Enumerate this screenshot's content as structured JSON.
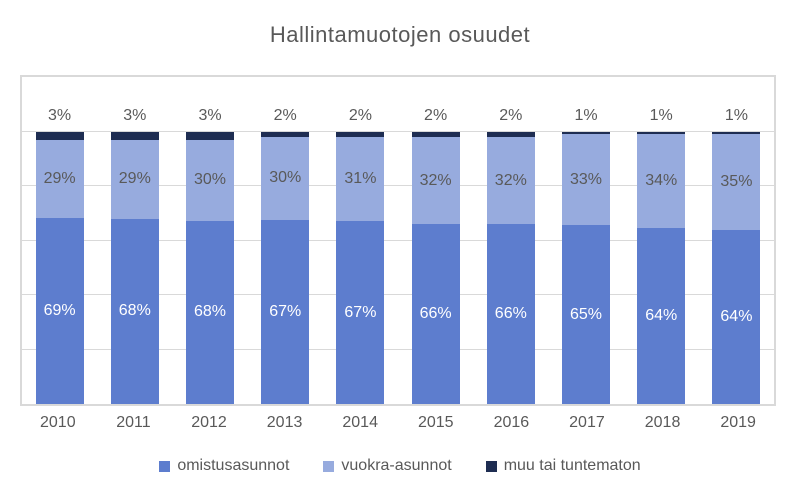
{
  "title": "Hallintamuotojen osuudet",
  "colors": {
    "text_gray": "#595959",
    "grid": "#D9D9D9",
    "frame": "#D9D9D9",
    "label_on_dark": "#FFFFFF"
  },
  "chart_data": {
    "type": "bar",
    "stacked": true,
    "title": "Hallintamuotojen osuudet",
    "categories": [
      "2010",
      "2011",
      "2012",
      "2013",
      "2014",
      "2015",
      "2016",
      "2017",
      "2018",
      "2019"
    ],
    "series": [
      {
        "name": "omistusasunnot",
        "color": "#5D7DCE",
        "label_color": "#FFFFFF",
        "label_position": "inside",
        "values": [
          69,
          68,
          68,
          67,
          67,
          66,
          66,
          65,
          64,
          64
        ]
      },
      {
        "name": "vuokra-asunnot",
        "color": "#97ABDE",
        "label_color": "#595959",
        "label_position": "inside",
        "values": [
          29,
          29,
          30,
          30,
          31,
          32,
          32,
          33,
          34,
          35
        ]
      },
      {
        "name": "muu tai tuntematon",
        "color": "#1E2D52",
        "label_color": "#595959",
        "label_position": "above",
        "values": [
          3,
          3,
          3,
          2,
          2,
          2,
          2,
          1,
          1,
          1
        ]
      }
    ],
    "value_suffix": "%",
    "ylim": [
      0,
      120
    ],
    "gridlines": [
      20,
      40,
      60,
      80,
      100
    ],
    "grid_on": true,
    "y_axis_labels_visible": false,
    "legend_position": "bottom"
  }
}
